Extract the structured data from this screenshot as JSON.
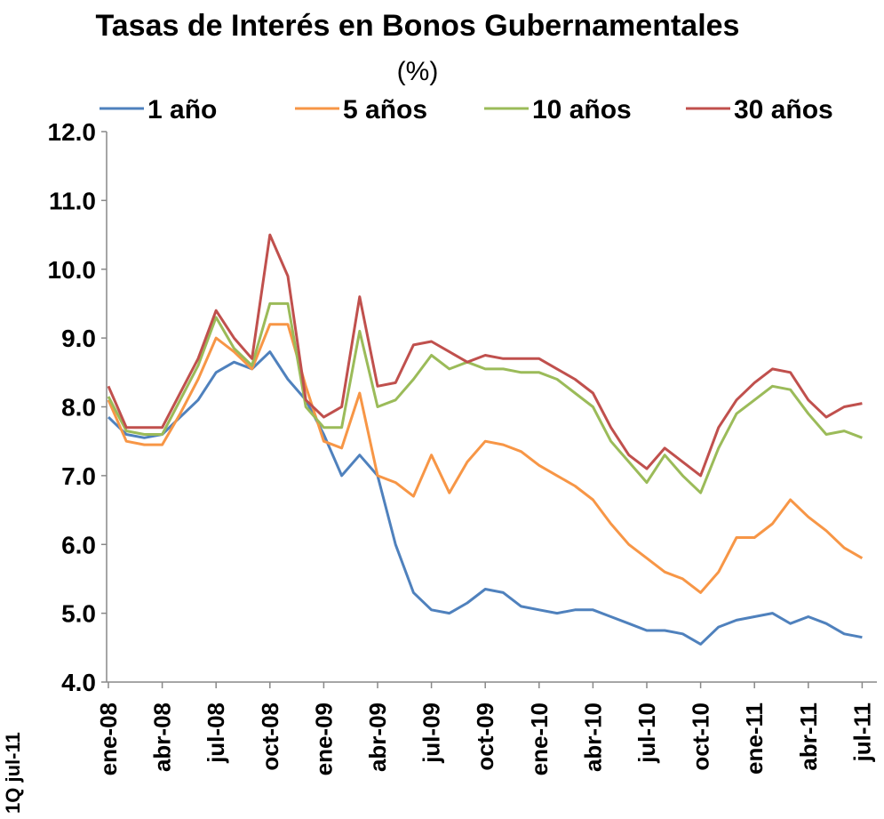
{
  "chart_data": {
    "type": "line",
    "title": "Tasas de Interés en Bonos Gubernamentales",
    "subtitle": "(%)",
    "annotations": [
      "1Q jul-11"
    ],
    "categories": [
      "ene-08",
      null,
      null,
      "abr-08",
      null,
      null,
      "jul-08",
      null,
      null,
      "oct-08",
      null,
      null,
      "ene-09",
      null,
      null,
      "abr-09",
      null,
      null,
      "jul-09",
      null,
      null,
      "oct-09",
      null,
      null,
      "ene-10",
      null,
      null,
      "abr-10",
      null,
      null,
      "jul-10",
      null,
      null,
      "oct-10",
      null,
      null,
      "ene-11",
      null,
      null,
      "abr-11",
      null,
      null,
      "jul-11"
    ],
    "series": [
      {
        "name": "1 año",
        "color": "#4f81bd",
        "values": [
          7.85,
          7.6,
          7.55,
          7.6,
          7.85,
          8.1,
          8.5,
          8.65,
          8.55,
          8.8,
          8.4,
          8.1,
          7.6,
          7.0,
          7.3,
          7.0,
          6.0,
          5.3,
          5.05,
          5.0,
          5.15,
          5.35,
          5.3,
          5.1,
          5.05,
          5.0,
          5.05,
          5.05,
          4.95,
          4.85,
          4.75,
          4.75,
          4.7,
          4.55,
          4.8,
          4.9,
          4.95,
          5.0,
          4.85,
          4.95,
          4.85,
          4.7,
          4.65
        ]
      },
      {
        "name": "5 años",
        "color": "#f79646",
        "values": [
          8.1,
          7.5,
          7.45,
          7.45,
          7.9,
          8.4,
          9.0,
          8.8,
          8.55,
          9.2,
          9.2,
          8.3,
          7.5,
          7.4,
          8.2,
          7.0,
          6.9,
          6.7,
          7.3,
          6.75,
          7.2,
          7.5,
          7.45,
          7.35,
          7.15,
          7.0,
          6.85,
          6.65,
          6.3,
          6.0,
          5.8,
          5.6,
          5.5,
          5.3,
          5.6,
          6.1,
          6.1,
          6.3,
          6.65,
          6.4,
          6.2,
          5.95,
          5.8
        ]
      },
      {
        "name": "10 años",
        "color": "#9bbb59",
        "values": [
          8.15,
          7.65,
          7.6,
          7.6,
          8.1,
          8.6,
          9.3,
          8.85,
          8.6,
          9.5,
          9.5,
          8.0,
          7.7,
          7.7,
          9.1,
          8.0,
          8.1,
          8.4,
          8.75,
          8.55,
          8.65,
          8.55,
          8.55,
          8.5,
          8.5,
          8.4,
          8.2,
          8.0,
          7.5,
          7.2,
          6.9,
          7.3,
          7.0,
          6.75,
          7.4,
          7.9,
          8.1,
          8.3,
          8.25,
          7.9,
          7.6,
          7.65,
          7.55
        ]
      },
      {
        "name": "30 años",
        "color": "#c0504d",
        "values": [
          8.3,
          7.7,
          7.7,
          7.7,
          8.2,
          8.7,
          9.4,
          9.0,
          8.7,
          10.5,
          9.9,
          8.1,
          7.85,
          8.0,
          9.6,
          8.3,
          8.35,
          8.9,
          8.95,
          8.8,
          8.65,
          8.75,
          8.7,
          8.7,
          8.7,
          8.55,
          8.4,
          8.2,
          7.7,
          7.3,
          7.1,
          7.4,
          7.2,
          7.0,
          7.7,
          8.1,
          8.35,
          8.55,
          8.5,
          8.1,
          7.85,
          8.0,
          8.05
        ]
      }
    ],
    "ylim": [
      4,
      12
    ],
    "yticks": [
      {
        "value": 4,
        "label": "4.0"
      },
      {
        "value": 5,
        "label": "5.0"
      },
      {
        "value": 6,
        "label": "6.0"
      },
      {
        "value": 7,
        "label": "7.0"
      },
      {
        "value": 8,
        "label": "8.0"
      },
      {
        "value": 9,
        "label": "9.0"
      },
      {
        "value": 10,
        "label": "10.0"
      },
      {
        "value": 11,
        "label": "11.0"
      },
      {
        "value": 12,
        "label": "12.0"
      }
    ],
    "grid": false,
    "legend": "top"
  }
}
